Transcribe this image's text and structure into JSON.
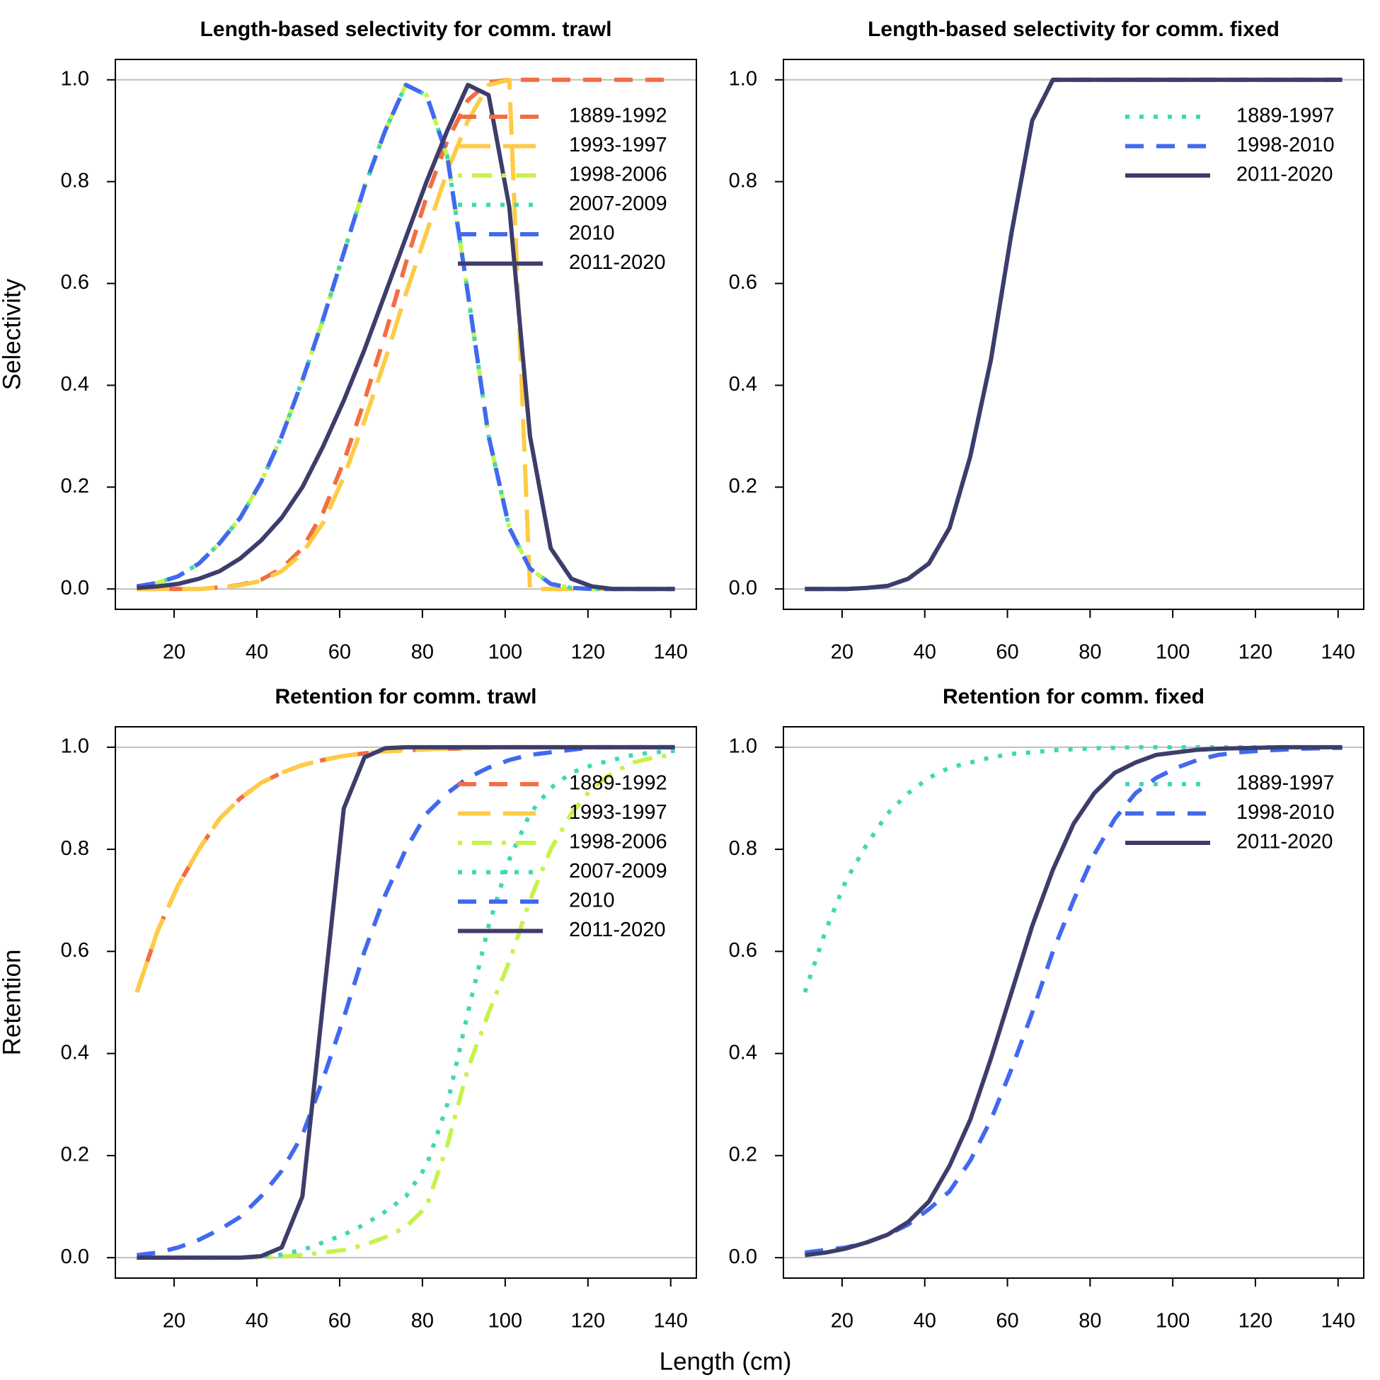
{
  "xlabel": "Length (cm)",
  "chart_data": [
    {
      "type": "line",
      "title": "Length-based selectivity for comm. trawl",
      "ylabel": "Selectivity",
      "x": [
        11,
        16,
        21,
        26,
        31,
        36,
        41,
        46,
        51,
        56,
        61,
        66,
        71,
        76,
        81,
        86,
        91,
        96,
        101,
        106,
        111,
        116,
        121,
        126,
        131,
        136,
        141
      ],
      "xlim": [
        5.8,
        146.2
      ],
      "ylim": [
        -0.04,
        1.04
      ],
      "xticks": [
        20,
        40,
        60,
        80,
        100,
        120,
        140
      ],
      "yticks": [
        {
          "value": 0,
          "label": "0.0"
        },
        0.2,
        0.4,
        0.6,
        0.8,
        {
          "value": 1,
          "label": "1.0"
        }
      ],
      "hlines": [
        0,
        1
      ],
      "legend": "topright",
      "series": [
        {
          "name": "1889-1992",
          "color": "#f46d43",
          "linestyle": "dashed",
          "values": [
            0,
            0,
            0,
            0,
            0.003,
            0.008,
            0.018,
            0.04,
            0.08,
            0.15,
            0.25,
            0.37,
            0.5,
            0.64,
            0.77,
            0.88,
            0.96,
            0.995,
            1,
            1,
            1,
            1,
            1,
            1,
            1,
            1,
            1
          ]
        },
        {
          "name": "1993-1997",
          "color": "#fdcb45",
          "linestyle": "longdash",
          "values": [
            0,
            0,
            0,
            0,
            0.003,
            0.007,
            0.016,
            0.035,
            0.07,
            0.13,
            0.22,
            0.33,
            0.45,
            0.58,
            0.7,
            0.82,
            0.92,
            0.99,
            1,
            0,
            0,
            0,
            0,
            0,
            0,
            0,
            0
          ]
        },
        {
          "name": "1998-2006",
          "color": "#c6f34a",
          "linestyle": "dotdash",
          "values": [
            0.005,
            0.012,
            0.025,
            0.05,
            0.09,
            0.14,
            0.21,
            0.3,
            0.41,
            0.53,
            0.66,
            0.79,
            0.9,
            0.99,
            0.97,
            0.85,
            0.58,
            0.3,
            0.12,
            0.04,
            0.01,
            0.002,
            0,
            0,
            0,
            0,
            0
          ]
        },
        {
          "name": "2007-2009",
          "color": "#3fd8b5",
          "linestyle": "dotted",
          "values": [
            0.005,
            0.012,
            0.025,
            0.05,
            0.09,
            0.14,
            0.21,
            0.3,
            0.41,
            0.53,
            0.66,
            0.79,
            0.9,
            0.99,
            0.97,
            0.85,
            0.58,
            0.3,
            0.12,
            0.04,
            0.01,
            0.002,
            0,
            0,
            0,
            0,
            0
          ]
        },
        {
          "name": "2010",
          "color": "#4169f0",
          "linestyle": "dashed",
          "values": [
            0.005,
            0.012,
            0.025,
            0.05,
            0.09,
            0.14,
            0.21,
            0.3,
            0.41,
            0.53,
            0.66,
            0.79,
            0.9,
            0.99,
            0.97,
            0.85,
            0.58,
            0.3,
            0.12,
            0.04,
            0.01,
            0.002,
            0,
            0,
            0,
            0,
            0
          ]
        },
        {
          "name": "2011-2020",
          "color": "#3d3d6b",
          "linestyle": "solid",
          "values": [
            0.002,
            0.005,
            0.01,
            0.02,
            0.035,
            0.06,
            0.095,
            0.14,
            0.2,
            0.28,
            0.37,
            0.47,
            0.58,
            0.69,
            0.8,
            0.9,
            0.99,
            0.97,
            0.75,
            0.3,
            0.08,
            0.02,
            0.005,
            0,
            0,
            0,
            0
          ]
        }
      ]
    },
    {
      "type": "line",
      "title": "Length-based selectivity for comm. fixed",
      "x": [
        11,
        16,
        21,
        26,
        31,
        36,
        41,
        46,
        51,
        56,
        61,
        66,
        71,
        76,
        81,
        86,
        91,
        96,
        101,
        106,
        111,
        116,
        121,
        126,
        131,
        136,
        141
      ],
      "xlim": [
        5.8,
        146.2
      ],
      "ylim": [
        -0.04,
        1.04
      ],
      "xticks": [
        20,
        40,
        60,
        80,
        100,
        120,
        140
      ],
      "yticks": [
        {
          "value": 0,
          "label": "0.0"
        },
        0.2,
        0.4,
        0.6,
        0.8,
        {
          "value": 1,
          "label": "1.0"
        }
      ],
      "hlines": [
        0,
        1
      ],
      "legend": "topright",
      "series": [
        {
          "name": "1889-1997",
          "color": "#3fd8b5",
          "linestyle": "dotted",
          "values": [
            0,
            0,
            0,
            0.002,
            0.006,
            0.02,
            0.05,
            0.12,
            0.26,
            0.45,
            0.7,
            0.92,
            1,
            1,
            1,
            1,
            1,
            1,
            1,
            1,
            1,
            1,
            1,
            1,
            1,
            1,
            1
          ]
        },
        {
          "name": "1998-2010",
          "color": "#4169f0",
          "linestyle": "dashed",
          "values": [
            0,
            0,
            0,
            0.002,
            0.006,
            0.02,
            0.05,
            0.12,
            0.26,
            0.45,
            0.7,
            0.92,
            1,
            1,
            1,
            1,
            1,
            1,
            1,
            1,
            1,
            1,
            1,
            1,
            1,
            1,
            1
          ]
        },
        {
          "name": "2011-2020",
          "color": "#3d3d6b",
          "linestyle": "solid",
          "values": [
            0,
            0,
            0,
            0.002,
            0.006,
            0.02,
            0.05,
            0.12,
            0.26,
            0.45,
            0.7,
            0.92,
            1,
            1,
            1,
            1,
            1,
            1,
            1,
            1,
            1,
            1,
            1,
            1,
            1,
            1,
            1
          ]
        }
      ]
    },
    {
      "type": "line",
      "title": "Retention for comm. trawl",
      "ylabel": "Retention",
      "x": [
        11,
        16,
        21,
        26,
        31,
        36,
        41,
        46,
        51,
        56,
        61,
        66,
        71,
        76,
        81,
        86,
        91,
        96,
        101,
        106,
        111,
        116,
        121,
        126,
        131,
        136,
        141
      ],
      "xlim": [
        5.8,
        146.2
      ],
      "ylim": [
        -0.04,
        1.04
      ],
      "xticks": [
        20,
        40,
        60,
        80,
        100,
        120,
        140
      ],
      "yticks": [
        {
          "value": 0,
          "label": "0.0"
        },
        0.2,
        0.4,
        0.6,
        0.8,
        {
          "value": 1,
          "label": "1.0"
        }
      ],
      "hlines": [
        0,
        1
      ],
      "legend": "topright",
      "series": [
        {
          "name": "1889-1992",
          "color": "#f46d43",
          "linestyle": "dashed",
          "values": [
            0.52,
            0.64,
            0.73,
            0.8,
            0.86,
            0.9,
            0.93,
            0.95,
            0.965,
            0.975,
            0.983,
            0.988,
            0.992,
            0.994,
            0.996,
            0.997,
            0.998,
            0.999,
            1,
            1,
            1,
            1,
            1,
            1,
            1,
            1,
            1
          ]
        },
        {
          "name": "1993-1997",
          "color": "#fdcb45",
          "linestyle": "longdash",
          "values": [
            0.52,
            0.64,
            0.73,
            0.8,
            0.86,
            0.9,
            0.93,
            0.95,
            0.965,
            0.975,
            0.983,
            0.988,
            0.992,
            0.994,
            0.996,
            0.997,
            0.998,
            0.999,
            1,
            1,
            1,
            1,
            1,
            1,
            1,
            1,
            1
          ]
        },
        {
          "name": "1998-2006",
          "color": "#c6f34a",
          "linestyle": "dotdash",
          "values": [
            0,
            0,
            0,
            0,
            0,
            0,
            0,
            0.002,
            0.005,
            0.01,
            0.015,
            0.025,
            0.04,
            0.06,
            0.1,
            0.22,
            0.37,
            0.48,
            0.58,
            0.7,
            0.8,
            0.87,
            0.92,
            0.95,
            0.97,
            0.98,
            0.985
          ]
        },
        {
          "name": "2007-2009",
          "color": "#3fd8b5",
          "linestyle": "dotted",
          "values": [
            0,
            0,
            0,
            0,
            0,
            0,
            0.002,
            0.006,
            0.015,
            0.03,
            0.045,
            0.065,
            0.09,
            0.12,
            0.18,
            0.3,
            0.48,
            0.65,
            0.78,
            0.87,
            0.92,
            0.95,
            0.965,
            0.975,
            0.985,
            0.99,
            0.993
          ]
        },
        {
          "name": "2010",
          "color": "#4169f0",
          "linestyle": "dashed",
          "values": [
            0.005,
            0.01,
            0.02,
            0.035,
            0.055,
            0.08,
            0.12,
            0.17,
            0.24,
            0.35,
            0.47,
            0.6,
            0.71,
            0.8,
            0.87,
            0.91,
            0.94,
            0.96,
            0.975,
            0.985,
            0.99,
            0.995,
            1,
            1,
            1,
            1,
            1
          ]
        },
        {
          "name": "2011-2020",
          "color": "#3d3d6b",
          "linestyle": "solid",
          "values": [
            0,
            0,
            0,
            0,
            0,
            0,
            0.003,
            0.02,
            0.12,
            0.5,
            0.88,
            0.98,
            0.998,
            1,
            1,
            1,
            1,
            1,
            1,
            1,
            1,
            1,
            1,
            1,
            1,
            1,
            1
          ]
        }
      ]
    },
    {
      "type": "line",
      "title": "Retention for comm. fixed",
      "x": [
        11,
        16,
        21,
        26,
        31,
        36,
        41,
        46,
        51,
        56,
        61,
        66,
        71,
        76,
        81,
        86,
        91,
        96,
        101,
        106,
        111,
        116,
        121,
        126,
        131,
        136,
        141
      ],
      "xlim": [
        5.8,
        146.2
      ],
      "ylim": [
        -0.04,
        1.04
      ],
      "xticks": [
        20,
        40,
        60,
        80,
        100,
        120,
        140
      ],
      "yticks": [
        {
          "value": 0,
          "label": "0.0"
        },
        0.2,
        0.4,
        0.6,
        0.8,
        {
          "value": 1,
          "label": "1.0"
        }
      ],
      "hlines": [
        0,
        1
      ],
      "legend": "topright",
      "series": [
        {
          "name": "1889-1997",
          "color": "#3fd8b5",
          "linestyle": "dotted",
          "values": [
            0.52,
            0.64,
            0.74,
            0.81,
            0.87,
            0.91,
            0.94,
            0.96,
            0.97,
            0.98,
            0.987,
            0.99,
            0.994,
            0.996,
            0.998,
            0.999,
            1,
            1,
            1,
            1,
            1,
            1,
            1,
            1,
            1,
            1,
            1
          ]
        },
        {
          "name": "1998-2010",
          "color": "#4169f0",
          "linestyle": "dashed",
          "values": [
            0.01,
            0.015,
            0.02,
            0.03,
            0.045,
            0.065,
            0.095,
            0.13,
            0.19,
            0.27,
            0.37,
            0.48,
            0.6,
            0.7,
            0.79,
            0.86,
            0.91,
            0.94,
            0.96,
            0.975,
            0.985,
            0.99,
            0.993,
            0.995,
            0.997,
            0.998,
            0.999
          ]
        },
        {
          "name": "2011-2020",
          "color": "#3d3d6b",
          "linestyle": "solid",
          "values": [
            0.005,
            0.01,
            0.018,
            0.03,
            0.045,
            0.07,
            0.11,
            0.18,
            0.27,
            0.39,
            0.52,
            0.65,
            0.76,
            0.85,
            0.91,
            0.95,
            0.97,
            0.985,
            0.99,
            0.995,
            0.997,
            0.998,
            0.999,
            1,
            1,
            1,
            1
          ]
        }
      ]
    }
  ]
}
